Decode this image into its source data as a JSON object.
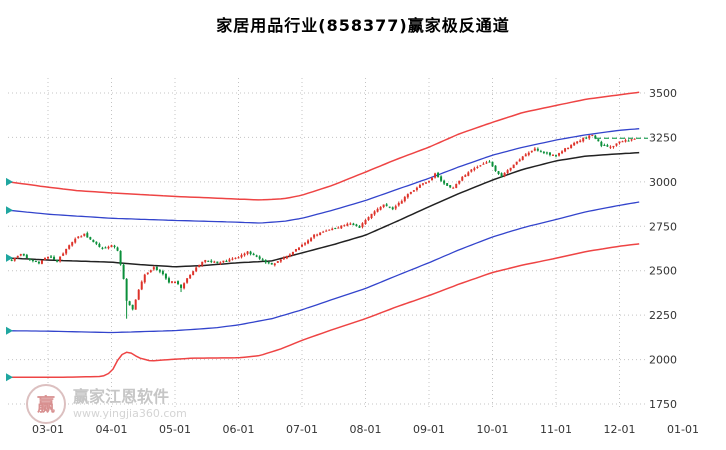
{
  "watermark": {
    "brand": "赢家江恩软件",
    "url": "www.yingjia360.com",
    "logo_char": "赢"
  },
  "chart_data": {
    "type": "candlestick",
    "title": "家居用品行业(858377)赢家极反通道",
    "y_axis": {
      "min": 1750,
      "max": 3500,
      "side": "right",
      "ticks": [
        1750,
        2000,
        2250,
        2500,
        2750,
        3000,
        3250,
        3500
      ]
    },
    "x_axis": {
      "ticks": [
        "03-01",
        "04-01",
        "05-01",
        "06-01",
        "07-01",
        "08-01",
        "09-01",
        "10-01",
        "11-01",
        "12-01",
        "01-01"
      ]
    },
    "grid": "dotted",
    "colors": {
      "up": "#dd3229",
      "down": "#0b8f3a",
      "grid": "#c4c4c4",
      "price_line": "#3fae6e",
      "marker": "#1fa6a0",
      "label": "#333333"
    },
    "current_price": 3245,
    "candles": {
      "day_range": [
        -12,
        194
      ],
      "seed": 42,
      "special_lows": [
        [
          26,
          2230
        ],
        [
          44,
          2380
        ]
      ],
      "anchors": [
        [
          -12,
          2560
        ],
        [
          -9,
          2595
        ],
        [
          -6,
          2565
        ],
        [
          -3,
          2545
        ],
        [
          0,
          2580
        ],
        [
          3,
          2555
        ],
        [
          6,
          2620
        ],
        [
          9,
          2680
        ],
        [
          12,
          2705
        ],
        [
          15,
          2660
        ],
        [
          18,
          2625
        ],
        [
          21,
          2645
        ],
        [
          23,
          2615
        ],
        [
          25,
          2455
        ],
        [
          26,
          2330
        ],
        [
          28,
          2285
        ],
        [
          30,
          2395
        ],
        [
          32,
          2475
        ],
        [
          35,
          2520
        ],
        [
          38,
          2480
        ],
        [
          40,
          2435
        ],
        [
          42,
          2440
        ],
        [
          44,
          2405
        ],
        [
          46,
          2455
        ],
        [
          49,
          2520
        ],
        [
          52,
          2560
        ],
        [
          56,
          2545
        ],
        [
          60,
          2560
        ],
        [
          63,
          2575
        ],
        [
          66,
          2605
        ],
        [
          70,
          2565
        ],
        [
          74,
          2535
        ],
        [
          78,
          2570
        ],
        [
          81,
          2605
        ],
        [
          84,
          2645
        ],
        [
          88,
          2700
        ],
        [
          92,
          2725
        ],
        [
          96,
          2745
        ],
        [
          100,
          2765
        ],
        [
          103,
          2745
        ],
        [
          105,
          2785
        ],
        [
          108,
          2835
        ],
        [
          111,
          2870
        ],
        [
          114,
          2845
        ],
        [
          117,
          2895
        ],
        [
          120,
          2945
        ],
        [
          123,
          2980
        ],
        [
          126,
          3005
        ],
        [
          128,
          3045
        ],
        [
          131,
          2990
        ],
        [
          134,
          2965
        ],
        [
          137,
          3025
        ],
        [
          140,
          3065
        ],
        [
          143,
          3095
        ],
        [
          146,
          3115
        ],
        [
          148,
          3060
        ],
        [
          150,
          3030
        ],
        [
          152,
          3065
        ],
        [
          155,
          3115
        ],
        [
          158,
          3155
        ],
        [
          161,
          3185
        ],
        [
          164,
          3165
        ],
        [
          168,
          3145
        ],
        [
          171,
          3185
        ],
        [
          174,
          3215
        ],
        [
          177,
          3245
        ],
        [
          180,
          3265
        ],
        [
          183,
          3205
        ],
        [
          186,
          3195
        ],
        [
          189,
          3225
        ],
        [
          192,
          3235
        ],
        [
          194,
          3245
        ]
      ]
    },
    "series": [
      {
        "name": "upper-outer-rail",
        "color": "#ee4444",
        "width": 1.5,
        "points": [
          [
            -13,
            3000
          ],
          [
            0,
            2970
          ],
          [
            10,
            2950
          ],
          [
            21,
            2938
          ],
          [
            42,
            2918
          ],
          [
            56,
            2908
          ],
          [
            63,
            2903
          ],
          [
            70,
            2898
          ],
          [
            78,
            2905
          ],
          [
            84,
            2925
          ],
          [
            94,
            2980
          ],
          [
            105,
            3055
          ],
          [
            115,
            3125
          ],
          [
            126,
            3195
          ],
          [
            136,
            3270
          ],
          [
            147,
            3335
          ],
          [
            157,
            3390
          ],
          [
            168,
            3430
          ],
          [
            178,
            3465
          ],
          [
            189,
            3490
          ],
          [
            196,
            3505
          ]
        ]
      },
      {
        "name": "upper-inner-rail",
        "color": "#3344cc",
        "width": 1.3,
        "points": [
          [
            -13,
            2840
          ],
          [
            0,
            2818
          ],
          [
            21,
            2795
          ],
          [
            42,
            2783
          ],
          [
            63,
            2773
          ],
          [
            70,
            2768
          ],
          [
            78,
            2778
          ],
          [
            84,
            2795
          ],
          [
            94,
            2840
          ],
          [
            105,
            2895
          ],
          [
            115,
            2955
          ],
          [
            126,
            3020
          ],
          [
            136,
            3085
          ],
          [
            147,
            3150
          ],
          [
            157,
            3195
          ],
          [
            168,
            3235
          ],
          [
            178,
            3265
          ],
          [
            189,
            3290
          ],
          [
            196,
            3300
          ]
        ]
      },
      {
        "name": "life-line",
        "color": "#222222",
        "width": 1.5,
        "points": [
          [
            -13,
            2572
          ],
          [
            0,
            2560
          ],
          [
            21,
            2548
          ],
          [
            30,
            2535
          ],
          [
            42,
            2522
          ],
          [
            52,
            2530
          ],
          [
            63,
            2545
          ],
          [
            74,
            2555
          ],
          [
            84,
            2600
          ],
          [
            94,
            2645
          ],
          [
            105,
            2700
          ],
          [
            115,
            2775
          ],
          [
            126,
            2860
          ],
          [
            136,
            2935
          ],
          [
            147,
            3010
          ],
          [
            157,
            3070
          ],
          [
            168,
            3118
          ],
          [
            178,
            3145
          ],
          [
            189,
            3158
          ],
          [
            196,
            3165
          ]
        ]
      },
      {
        "name": "lower-inner-rail",
        "color": "#3344cc",
        "width": 1.3,
        "points": [
          [
            -13,
            2162
          ],
          [
            0,
            2160
          ],
          [
            21,
            2152
          ],
          [
            42,
            2163
          ],
          [
            55,
            2178
          ],
          [
            63,
            2195
          ],
          [
            74,
            2230
          ],
          [
            84,
            2280
          ],
          [
            94,
            2338
          ],
          [
            105,
            2400
          ],
          [
            115,
            2470
          ],
          [
            126,
            2545
          ],
          [
            136,
            2618
          ],
          [
            147,
            2690
          ],
          [
            157,
            2742
          ],
          [
            168,
            2788
          ],
          [
            178,
            2832
          ],
          [
            189,
            2868
          ],
          [
            196,
            2888
          ]
        ]
      },
      {
        "name": "lower-outer-rail",
        "color": "#ee4444",
        "width": 1.5,
        "points": [
          [
            -13,
            1900
          ],
          [
            0,
            1900
          ],
          [
            10,
            1902
          ],
          [
            18,
            1905
          ],
          [
            21,
            1930
          ],
          [
            23,
            1995
          ],
          [
            25,
            2040
          ],
          [
            27,
            2042
          ],
          [
            30,
            2010
          ],
          [
            34,
            1992
          ],
          [
            40,
            2000
          ],
          [
            48,
            2008
          ],
          [
            63,
            2010
          ],
          [
            70,
            2022
          ],
          [
            77,
            2060
          ],
          [
            84,
            2108
          ],
          [
            94,
            2168
          ],
          [
            105,
            2230
          ],
          [
            115,
            2295
          ],
          [
            126,
            2360
          ],
          [
            136,
            2425
          ],
          [
            147,
            2490
          ],
          [
            157,
            2532
          ],
          [
            168,
            2570
          ],
          [
            178,
            2608
          ],
          [
            189,
            2638
          ],
          [
            196,
            2652
          ]
        ]
      }
    ]
  }
}
